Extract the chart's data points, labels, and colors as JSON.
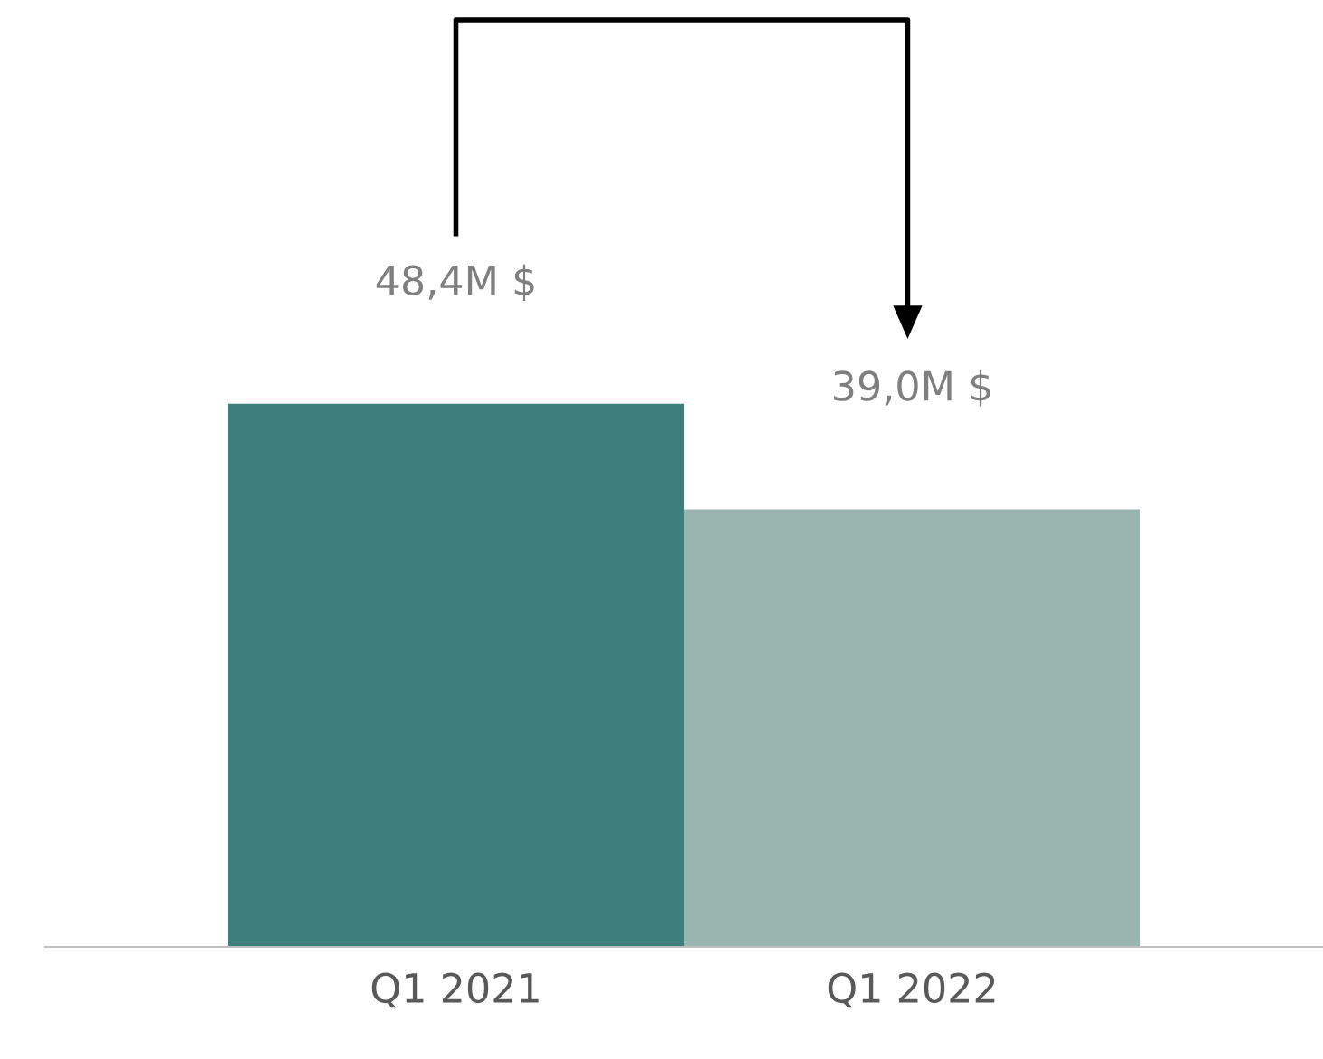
{
  "chart_data": {
    "type": "bar",
    "categories": [
      "Q1 2021",
      "Q1 2022"
    ],
    "values": [
      48.4,
      39.0
    ],
    "colors": [
      "#3d7f7a",
      "#9ab4b0"
    ],
    "value_labels": [
      "48,4M $",
      "39,0M $"
    ],
    "grid": false
  }
}
